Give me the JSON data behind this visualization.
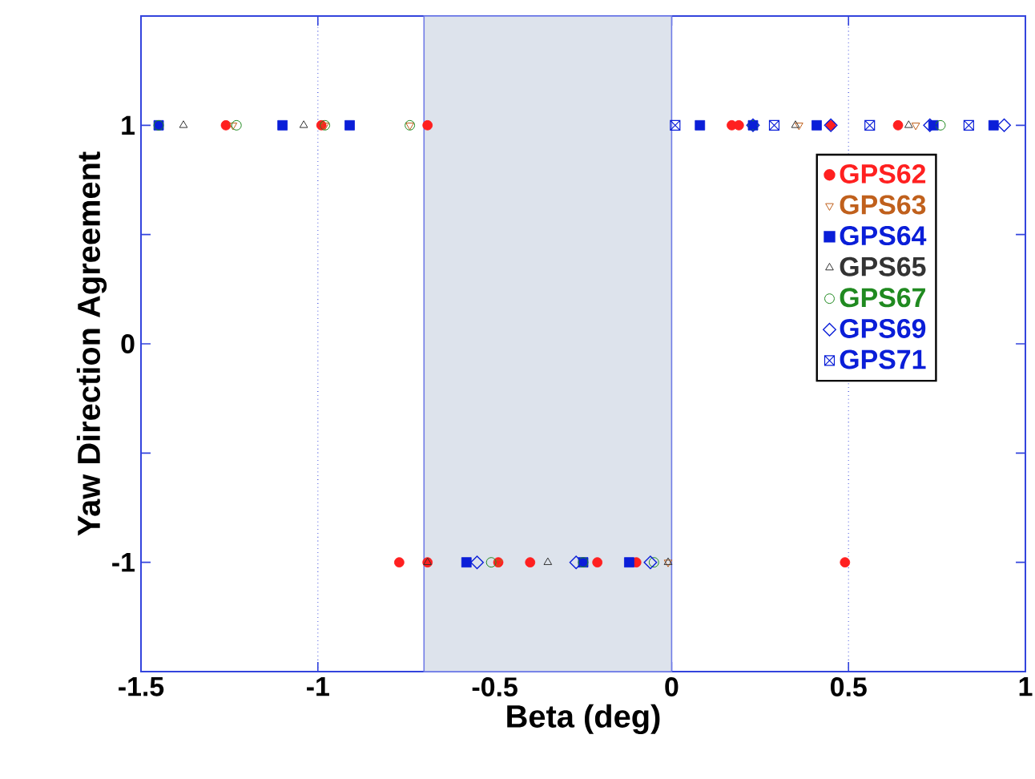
{
  "chart_data": {
    "type": "scatter",
    "xlabel": "Beta (deg)",
    "ylabel": "Yaw Direction Agreement",
    "xlim": [
      -1.5,
      1
    ],
    "ylim": [
      -1.5,
      1.5
    ],
    "xticks": [
      -1.5,
      -1,
      -0.5,
      0,
      0.5,
      1
    ],
    "yticks": [
      -1,
      {
        "value": -0.5,
        "label": null
      },
      0,
      {
        "value": 0.5,
        "label": null
      },
      1
    ],
    "grid": "x",
    "legend": "right",
    "bands": [
      {
        "axis": "x",
        "from": -0.7,
        "to": 0,
        "color": "#dde3ec"
      }
    ],
    "series": [
      {
        "name": "GPS62",
        "color": "#ff2020",
        "marker": "circle",
        "x": [
          -1.26,
          -0.99,
          -0.69,
          0.17,
          0.19,
          0.45,
          0.64,
          -0.77,
          -0.69,
          -0.49,
          -0.4,
          -0.21,
          -0.1,
          0.49
        ],
        "values": [
          1,
          1,
          1,
          1,
          1,
          1,
          1,
          -1,
          -1,
          -1,
          -1,
          -1,
          -1,
          -1
        ]
      },
      {
        "name": "GPS63",
        "color": "#c0601c",
        "marker": "triangle",
        "x": [
          -1.24,
          -0.98,
          -0.74,
          0.36,
          0.69,
          -0.49,
          -0.01
        ],
        "values": [
          1,
          1,
          1,
          1,
          1,
          -1,
          -1
        ]
      },
      {
        "name": "GPS64",
        "color": "#0a1ed8",
        "marker": "square",
        "x": [
          -1.45,
          -1.1,
          -0.91,
          0.08,
          0.23,
          0.41,
          0.74,
          0.91,
          -0.58,
          -0.25,
          -0.12
        ],
        "values": [
          1,
          1,
          1,
          1,
          1,
          1,
          1,
          1,
          -1,
          -1,
          -1
        ]
      },
      {
        "name": "GPS65",
        "color": "#333333",
        "marker": "triangle",
        "x": [
          -1.38,
          -1.04,
          0.35,
          0.67,
          -0.69,
          -0.35,
          -0.01
        ],
        "values": [
          1,
          1,
          1,
          1,
          -1,
          -1,
          -1
        ]
      },
      {
        "name": "GPS67",
        "color": "#208a20",
        "marker": "circle",
        "x": [
          -1.45,
          -1.23,
          -0.98,
          -0.74,
          0.23,
          0.76,
          -0.51,
          -0.25,
          -0.05
        ],
        "values": [
          1,
          1,
          1,
          1,
          1,
          1,
          -1,
          -1,
          -1
        ]
      },
      {
        "name": "GPS69",
        "color": "#0a1ed8",
        "marker": "diamond",
        "x": [
          0.23,
          0.45,
          0.73,
          0.94,
          -0.55,
          -0.27,
          -0.06
        ],
        "values": [
          1,
          1,
          1,
          1,
          -1,
          -1,
          -1
        ]
      },
      {
        "name": "GPS71",
        "color": "#0a1ed8",
        "marker": "cross",
        "x": [
          0.01,
          0.29,
          0.56,
          0.84
        ],
        "values": [
          1,
          1,
          1,
          1
        ]
      }
    ]
  }
}
